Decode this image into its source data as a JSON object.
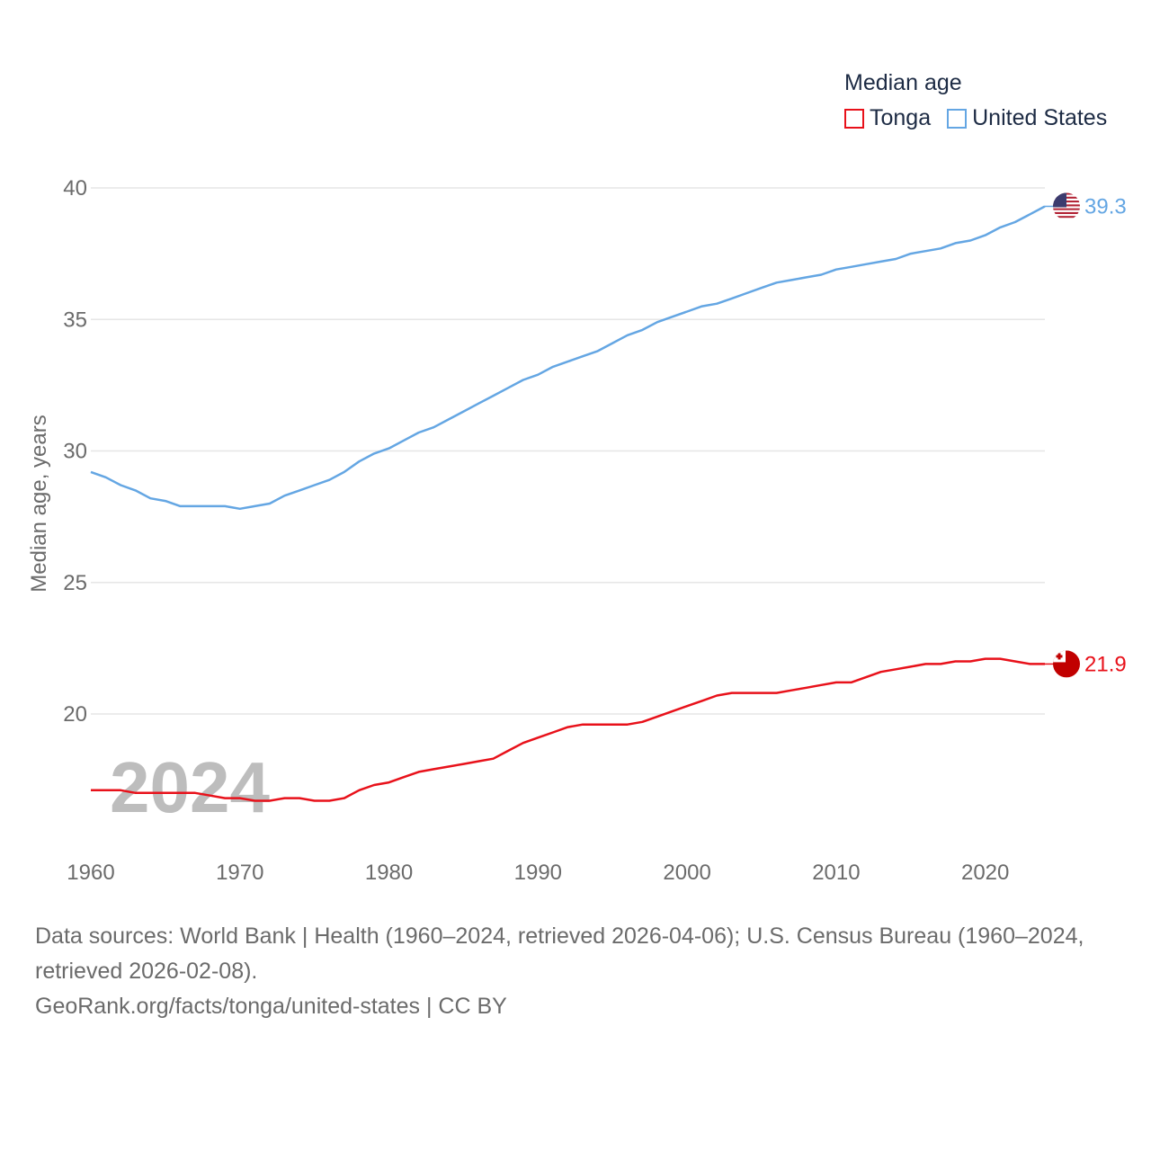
{
  "legend": {
    "title": "Median age",
    "items": [
      {
        "label": "Tonga",
        "color": "#e8111a"
      },
      {
        "label": "United States",
        "color": "#64a6e3"
      }
    ]
  },
  "footer": {
    "sources_line": "Data sources: World Bank | Health (1960–2024, retrieved 2026-04-06); U.S. Census Bureau (1960–2024, retrieved 2026-02-08).",
    "attribution": "GeoRank.org/facts/tonga/united-states | CC BY"
  },
  "chart_data": {
    "type": "line",
    "title": "Median age",
    "ylabel": "Median age, years",
    "xlabel": "",
    "year_watermark": "2024",
    "ylim": [
      16,
      40
    ],
    "yticks": [
      20,
      25,
      30,
      35,
      40
    ],
    "xlim": [
      1960,
      2024
    ],
    "xticks": [
      1960,
      1970,
      1980,
      1990,
      2000,
      2010,
      2020
    ],
    "x": [
      1960,
      1961,
      1962,
      1963,
      1964,
      1965,
      1966,
      1967,
      1968,
      1969,
      1970,
      1971,
      1972,
      1973,
      1974,
      1975,
      1976,
      1977,
      1978,
      1979,
      1980,
      1981,
      1982,
      1983,
      1984,
      1985,
      1986,
      1987,
      1988,
      1989,
      1990,
      1991,
      1992,
      1993,
      1994,
      1995,
      1996,
      1997,
      1998,
      1999,
      2000,
      2001,
      2002,
      2003,
      2004,
      2005,
      2006,
      2007,
      2008,
      2009,
      2010,
      2011,
      2012,
      2013,
      2014,
      2015,
      2016,
      2017,
      2018,
      2019,
      2020,
      2021,
      2022,
      2023,
      2024
    ],
    "series": [
      {
        "name": "Tonga",
        "color": "#e8111a",
        "end_label": "21.9",
        "flag": "tonga-flag",
        "values": [
          17.1,
          17.1,
          17.1,
          17.0,
          17.0,
          17.0,
          17.0,
          17.0,
          16.9,
          16.8,
          16.8,
          16.7,
          16.7,
          16.8,
          16.8,
          16.7,
          16.7,
          16.8,
          17.1,
          17.3,
          17.4,
          17.6,
          17.8,
          17.9,
          18.0,
          18.1,
          18.2,
          18.3,
          18.6,
          18.9,
          19.1,
          19.3,
          19.5,
          19.6,
          19.6,
          19.6,
          19.6,
          19.7,
          19.9,
          20.1,
          20.3,
          20.5,
          20.7,
          20.8,
          20.8,
          20.8,
          20.8,
          20.9,
          21.0,
          21.1,
          21.2,
          21.2,
          21.4,
          21.6,
          21.7,
          21.8,
          21.9,
          21.9,
          22.0,
          22.0,
          22.1,
          22.1,
          22.0,
          21.9,
          21.9
        ]
      },
      {
        "name": "United States",
        "color": "#64a6e3",
        "end_label": "39.3",
        "flag": "united-states-flag",
        "values": [
          29.2,
          29.0,
          28.7,
          28.5,
          28.2,
          28.1,
          27.9,
          27.9,
          27.9,
          27.9,
          27.8,
          27.9,
          28.0,
          28.3,
          28.5,
          28.7,
          28.9,
          29.2,
          29.6,
          29.9,
          30.1,
          30.4,
          30.7,
          30.9,
          31.2,
          31.5,
          31.8,
          32.1,
          32.4,
          32.7,
          32.9,
          33.2,
          33.4,
          33.6,
          33.8,
          34.1,
          34.4,
          34.6,
          34.9,
          35.1,
          35.3,
          35.5,
          35.6,
          35.8,
          36.0,
          36.2,
          36.4,
          36.5,
          36.6,
          36.7,
          36.9,
          37.0,
          37.1,
          37.2,
          37.3,
          37.5,
          37.6,
          37.7,
          37.9,
          38.0,
          38.2,
          38.5,
          38.7,
          39.0,
          39.3
        ]
      }
    ]
  }
}
